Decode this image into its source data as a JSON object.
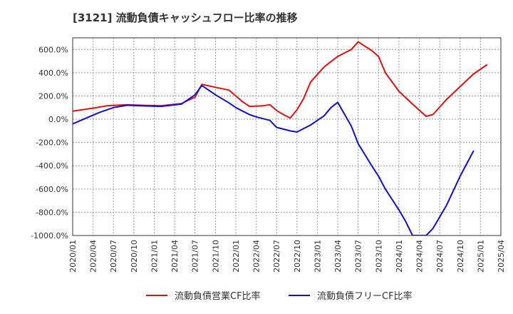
{
  "chart_data": {
    "type": "line",
    "title": "[3121]  流動負債キャッシュフロー比率の推移",
    "xlabel": "",
    "ylabel": "",
    "ylim": [
      -1000,
      700
    ],
    "yticks": [
      600,
      400,
      200,
      0,
      -200,
      -400,
      -600,
      -800,
      -1000
    ],
    "ytick_labels": [
      "600.0%",
      "400.0%",
      "200.0%",
      "0.0%",
      "-200.0%",
      "-400.0%",
      "-600.0%",
      "-800.0%",
      "-1000.0%"
    ],
    "xtick_labels": [
      "2020/01",
      "2020/04",
      "2020/07",
      "2020/10",
      "2021/01",
      "2021/04",
      "2021/07",
      "2021/10",
      "2022/01",
      "2022/04",
      "2022/07",
      "2022/10",
      "2023/01",
      "2023/04",
      "2023/07",
      "2023/10",
      "2024/01",
      "2024/04",
      "2024/07",
      "2024/10",
      "2025/01",
      "2025/04"
    ],
    "x_index_range": [
      0,
      63
    ],
    "grid": true,
    "legend_position": "bottom",
    "series": [
      {
        "name": "流動負債営業CF比率",
        "color": "#dd1111",
        "points": [
          [
            0,
            70
          ],
          [
            3,
            95
          ],
          [
            5,
            115
          ],
          [
            8,
            125
          ],
          [
            10,
            120
          ],
          [
            13,
            115
          ],
          [
            16,
            135
          ],
          [
            18,
            190
          ],
          [
            19,
            300
          ],
          [
            21,
            275
          ],
          [
            23,
            250
          ],
          [
            25,
            150
          ],
          [
            26,
            110
          ],
          [
            28,
            115
          ],
          [
            29,
            125
          ],
          [
            30,
            75
          ],
          [
            31,
            40
          ],
          [
            32,
            10
          ],
          [
            33,
            80
          ],
          [
            34,
            180
          ],
          [
            35,
            320
          ],
          [
            37,
            450
          ],
          [
            39,
            540
          ],
          [
            41,
            600
          ],
          [
            42,
            665
          ],
          [
            44,
            590
          ],
          [
            45,
            540
          ],
          [
            46,
            400
          ],
          [
            48,
            240
          ],
          [
            50,
            130
          ],
          [
            52,
            25
          ],
          [
            53,
            40
          ],
          [
            55,
            170
          ],
          [
            57,
            280
          ],
          [
            59,
            390
          ],
          [
            61,
            470
          ]
        ]
      },
      {
        "name": "流動負債フリーCF比率",
        "color": "#1111cc",
        "points": [
          [
            0,
            -40
          ],
          [
            2,
            10
          ],
          [
            4,
            60
          ],
          [
            6,
            100
          ],
          [
            8,
            120
          ],
          [
            10,
            115
          ],
          [
            13,
            110
          ],
          [
            16,
            130
          ],
          [
            18,
            210
          ],
          [
            19,
            290
          ],
          [
            21,
            210
          ],
          [
            23,
            140
          ],
          [
            24,
            100
          ],
          [
            26,
            40
          ],
          [
            27,
            20
          ],
          [
            29,
            -10
          ],
          [
            30,
            -70
          ],
          [
            32,
            -100
          ],
          [
            33,
            -110
          ],
          [
            34,
            -80
          ],
          [
            35,
            -50
          ],
          [
            37,
            30
          ],
          [
            38,
            100
          ],
          [
            39,
            145
          ],
          [
            41,
            -60
          ],
          [
            42,
            -210
          ],
          [
            44,
            -400
          ],
          [
            45,
            -490
          ],
          [
            46,
            -600
          ],
          [
            48,
            -780
          ],
          [
            49,
            -880
          ],
          [
            50,
            -1000
          ],
          [
            52,
            -1000
          ],
          [
            53,
            -940
          ],
          [
            55,
            -740
          ],
          [
            57,
            -490
          ],
          [
            59,
            -270
          ]
        ]
      }
    ]
  }
}
